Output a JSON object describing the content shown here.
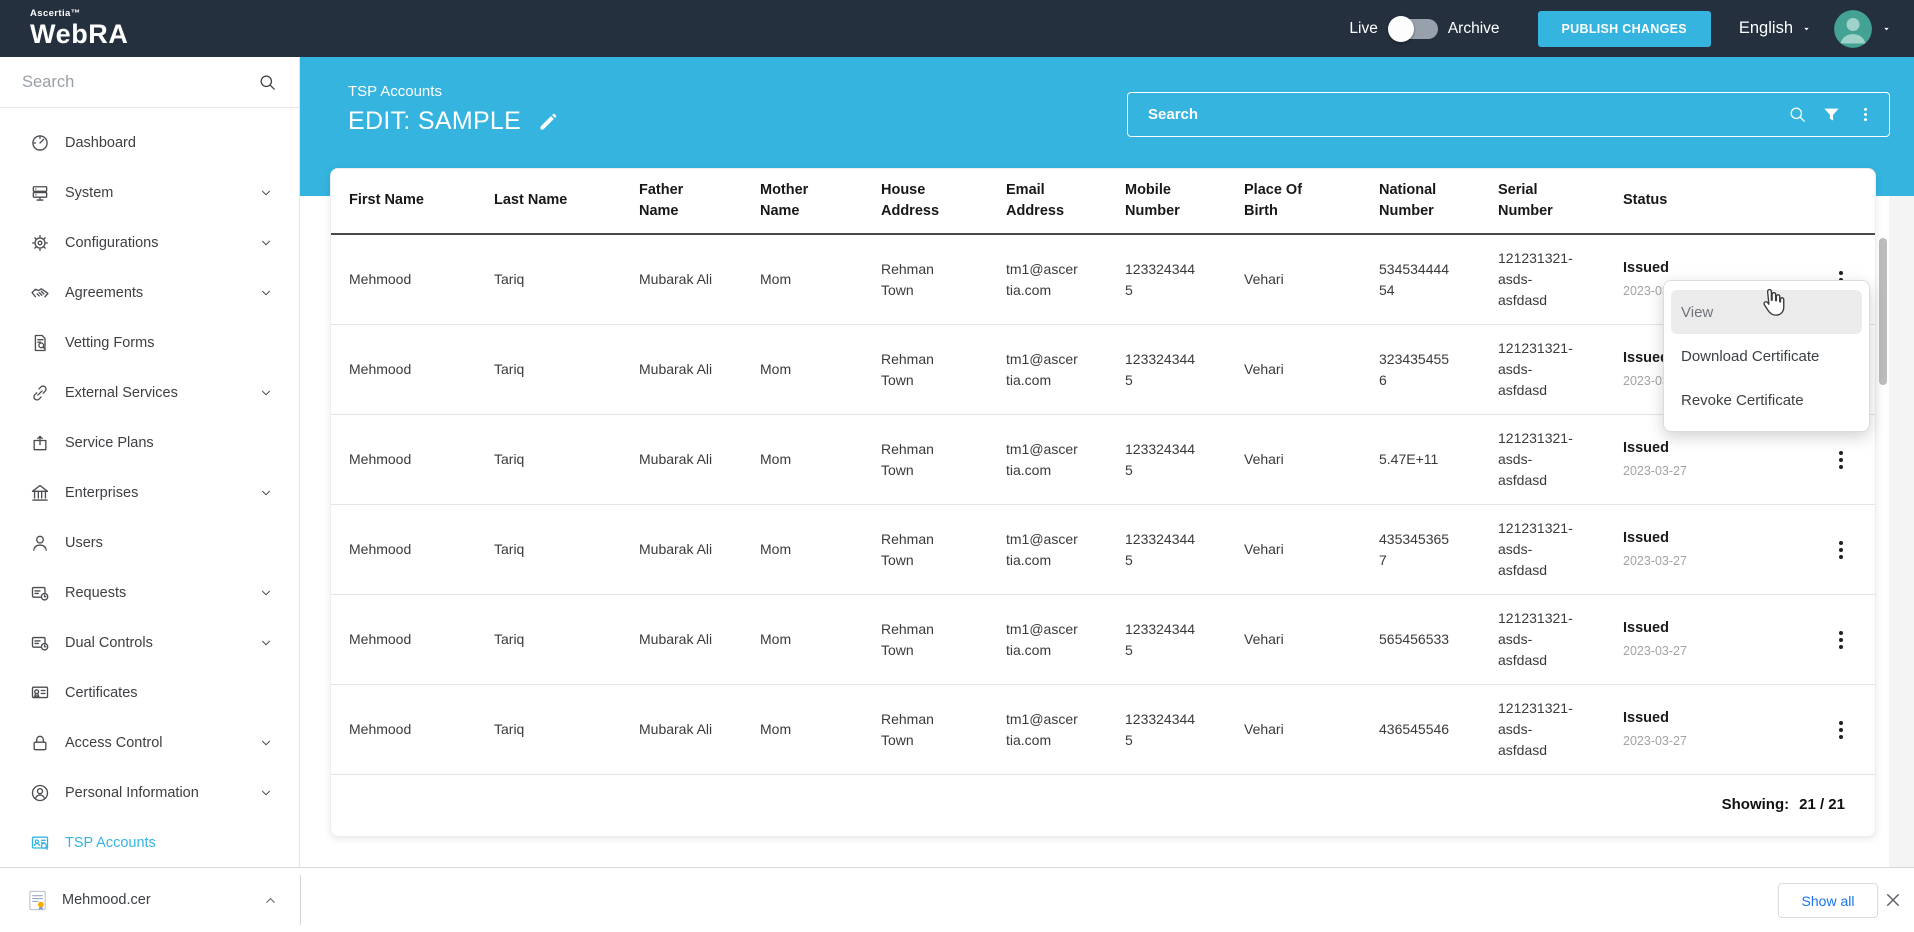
{
  "colors": {
    "accent": "#35b4e0",
    "navbar": "#25303e",
    "status_date": "#a3a3a3",
    "link_blue": "#1a73e8"
  },
  "topbar": {
    "brand_top": "Ascertia™",
    "brand_name": "WebRA",
    "live_label": "Live",
    "archive_label": "Archive",
    "toggle_state": "Live",
    "publish_button": "PUBLISH CHANGES",
    "language": "English"
  },
  "sidebar": {
    "search_placeholder": "Search",
    "items": [
      {
        "label": "Dashboard",
        "icon": "dashboard",
        "chevron": false,
        "active": false
      },
      {
        "label": "System",
        "icon": "system",
        "chevron": true,
        "active": false
      },
      {
        "label": "Configurations",
        "icon": "gear",
        "chevron": true,
        "active": false
      },
      {
        "label": "Agreements",
        "icon": "handshake",
        "chevron": true,
        "active": false
      },
      {
        "label": "Vetting Forms",
        "icon": "vetting",
        "chevron": false,
        "active": false
      },
      {
        "label": "External Services",
        "icon": "link",
        "chevron": true,
        "active": false
      },
      {
        "label": "Service Plans",
        "icon": "box-up",
        "chevron": false,
        "active": false
      },
      {
        "label": "Enterprises",
        "icon": "bank",
        "chevron": true,
        "active": false
      },
      {
        "label": "Users",
        "icon": "user",
        "chevron": false,
        "active": false
      },
      {
        "label": "Requests",
        "icon": "card-clock",
        "chevron": true,
        "active": false
      },
      {
        "label": "Dual Controls",
        "icon": "card-clock",
        "chevron": true,
        "active": false
      },
      {
        "label": "Certificates",
        "icon": "certificate",
        "chevron": false,
        "active": false
      },
      {
        "label": "Access Control",
        "icon": "lock",
        "chevron": true,
        "active": false
      },
      {
        "label": "Personal Information",
        "icon": "person-circle",
        "chevron": true,
        "active": false
      },
      {
        "label": "TSP Accounts",
        "icon": "tsp",
        "chevron": false,
        "active": true
      }
    ]
  },
  "page_header": {
    "breadcrumb": "TSP Accounts",
    "title": "EDIT: SAMPLE",
    "search_placeholder": "Search"
  },
  "table": {
    "columns": [
      "First Name",
      "Last Name",
      "Father\nName",
      "Mother\nName",
      "House\nAddress",
      "Email\nAddress",
      "Mobile\nNumber",
      "Place Of\nBirth",
      "National\nNumber",
      "Serial\nNumber",
      "Status"
    ],
    "rows": [
      {
        "first_name": "Mehmood",
        "last_name": "Tariq",
        "father_name": "Mubarak Ali",
        "mother_name": "Mom",
        "house_address": "Rehman Town",
        "email_address": "tm1@ascertia.com",
        "mobile_number": "1233243445",
        "place_of_birth": "Vehari",
        "national_number": "53453444454",
        "serial_number": "121231321-asds-asfdasd",
        "status": "Issued",
        "status_date": "2023-03-27"
      },
      {
        "first_name": "Mehmood",
        "last_name": "Tariq",
        "father_name": "Mubarak Ali",
        "mother_name": "Mom",
        "house_address": "Rehman Town",
        "email_address": "tm1@ascertia.com",
        "mobile_number": "1233243445",
        "place_of_birth": "Vehari",
        "national_number": "3234354556",
        "serial_number": "121231321-asds-asfdasd",
        "status": "Issued",
        "status_date": "2023-03-27"
      },
      {
        "first_name": "Mehmood",
        "last_name": "Tariq",
        "father_name": "Mubarak Ali",
        "mother_name": "Mom",
        "house_address": "Rehman Town",
        "email_address": "tm1@ascertia.com",
        "mobile_number": "1233243445",
        "place_of_birth": "Vehari",
        "national_number": "5.47E+11",
        "serial_number": "121231321-asds-asfdasd",
        "status": "Issued",
        "status_date": "2023-03-27"
      },
      {
        "first_name": "Mehmood",
        "last_name": "Tariq",
        "father_name": "Mubarak Ali",
        "mother_name": "Mom",
        "house_address": "Rehman Town",
        "email_address": "tm1@ascertia.com",
        "mobile_number": "1233243445",
        "place_of_birth": "Vehari",
        "national_number": "4353453657",
        "serial_number": "121231321-asds-asfdasd",
        "status": "Issued",
        "status_date": "2023-03-27"
      },
      {
        "first_name": "Mehmood",
        "last_name": "Tariq",
        "father_name": "Mubarak Ali",
        "mother_name": "Mom",
        "house_address": "Rehman Town",
        "email_address": "tm1@ascertia.com",
        "mobile_number": "1233243445",
        "place_of_birth": "Vehari",
        "national_number": "565456533",
        "serial_number": "121231321-asds-asfdasd",
        "status": "Issued",
        "status_date": "2023-03-27"
      },
      {
        "first_name": "Mehmood",
        "last_name": "Tariq",
        "father_name": "Mubarak Ali",
        "mother_name": "Mom",
        "house_address": "Rehman Town",
        "email_address": "tm1@ascertia.com",
        "mobile_number": "1233243445",
        "place_of_birth": "Vehari",
        "national_number": "436545546",
        "serial_number": "121231321-asds-asfdasd",
        "status": "Issued",
        "status_date": "2023-03-27"
      }
    ],
    "showing_label": "Showing:",
    "showing_value": "21 / 21"
  },
  "context_menu": {
    "items": [
      "View",
      "Download Certificate",
      "Revoke Certificate"
    ],
    "active_index": 0
  },
  "downloads_bar": {
    "file_name": "Mehmood.cer",
    "show_all_label": "Show all"
  }
}
